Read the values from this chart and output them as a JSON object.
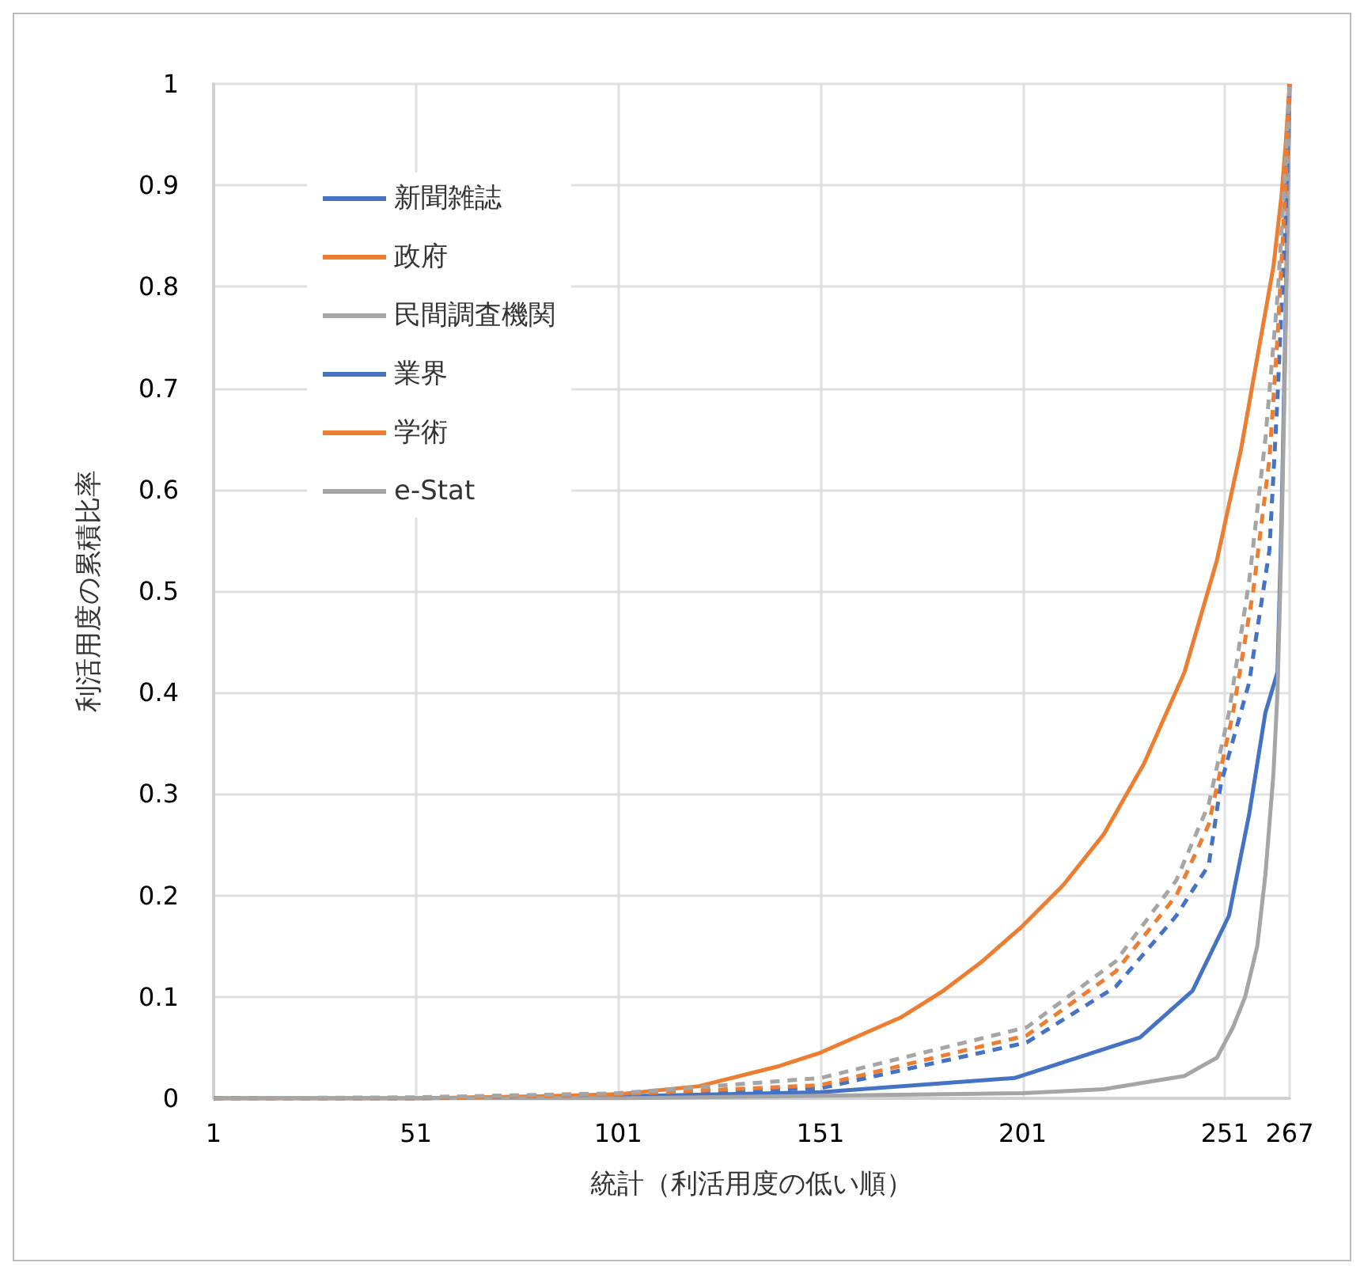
{
  "chart_data": {
    "type": "line",
    "xlabel": "統計（利活用度の低い順）",
    "ylabel": "利活用度の累積比率",
    "xlim": [
      1,
      267
    ],
    "xticks": [
      1,
      51,
      101,
      151,
      201,
      251,
      267
    ],
    "ylim": [
      0,
      1
    ],
    "yticks": [
      0,
      0.1,
      0.2,
      0.3,
      0.4,
      0.5,
      0.6,
      0.7,
      0.8,
      0.9,
      1
    ],
    "grid": true,
    "legend": "top left",
    "marker": "none",
    "series": [
      {
        "name": "新聞雑誌",
        "color": "#4472c4",
        "line_style": "solid",
        "x": [
          1,
          51,
          101,
          151,
          199,
          230,
          243,
          252,
          257,
          261,
          264,
          265,
          266,
          267
        ],
        "values": [
          0,
          0,
          0.002,
          0.006,
          0.02,
          0.06,
          0.106,
          0.18,
          0.28,
          0.38,
          0.42,
          0.57,
          0.77,
          1
        ]
      },
      {
        "name": "政府",
        "color": "#ed7d31",
        "line_style": "solid",
        "x": [
          1,
          51,
          81,
          101,
          121,
          141,
          151,
          171,
          181,
          191,
          201,
          211,
          221,
          231,
          241,
          249,
          255,
          259,
          263,
          265,
          266,
          267
        ],
        "values": [
          0,
          0,
          0.002,
          0.004,
          0.012,
          0.032,
          0.045,
          0.08,
          0.105,
          0.135,
          0.17,
          0.21,
          0.26,
          0.33,
          0.42,
          0.53,
          0.64,
          0.73,
          0.82,
          0.89,
          0.94,
          1
        ]
      },
      {
        "name": "民間調査機関",
        "color": "#a5a5a5",
        "line_style": "solid",
        "x": [
          1,
          101,
          201,
          221,
          241,
          249,
          253,
          256,
          259,
          261,
          263,
          264,
          265,
          266,
          267
        ],
        "values": [
          0,
          0,
          0.005,
          0.009,
          0.022,
          0.04,
          0.07,
          0.1,
          0.15,
          0.22,
          0.32,
          0.4,
          0.55,
          0.75,
          1
        ]
      },
      {
        "name": "業界",
        "color": "#4472c4",
        "line_style": "dashed",
        "x": [
          1,
          51,
          101,
          151,
          202,
          224,
          239,
          247,
          250,
          257,
          262,
          264,
          266,
          267
        ],
        "values": [
          0,
          0,
          0.004,
          0.01,
          0.055,
          0.11,
          0.18,
          0.23,
          0.31,
          0.41,
          0.54,
          0.69,
          0.87,
          1
        ]
      },
      {
        "name": "学術",
        "color": "#ed7d31",
        "line_style": "dashed",
        "x": [
          1,
          51,
          101,
          151,
          202,
          224,
          239,
          247,
          253,
          258,
          262,
          264,
          266,
          267
        ],
        "values": [
          0,
          0,
          0.004,
          0.013,
          0.062,
          0.125,
          0.2,
          0.27,
          0.38,
          0.5,
          0.63,
          0.75,
          0.9,
          1
        ]
      },
      {
        "name": "e-Stat",
        "color": "#a5a5a5",
        "line_style": "dashed",
        "x": [
          1,
          51,
          101,
          151,
          202,
          224,
          239,
          247,
          252,
          257,
          261,
          264,
          266,
          267
        ],
        "values": [
          0,
          0.001,
          0.005,
          0.02,
          0.07,
          0.135,
          0.215,
          0.29,
          0.38,
          0.51,
          0.65,
          0.79,
          0.92,
          1
        ]
      }
    ]
  }
}
